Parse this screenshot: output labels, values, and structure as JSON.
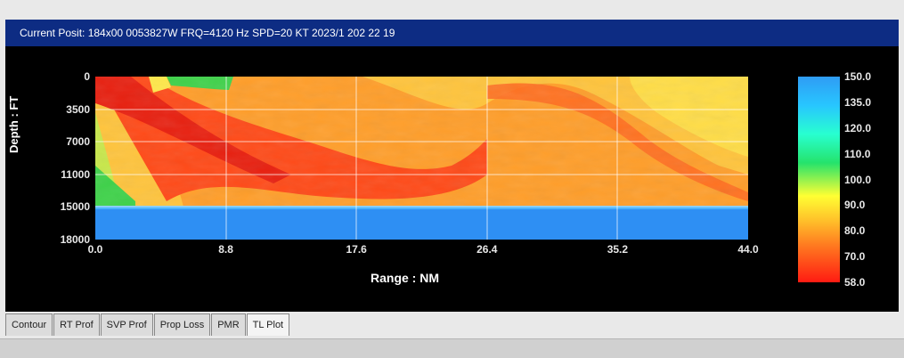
{
  "window": {
    "title": "Current Posit: 184x00 0053827W FRQ=4120 Hz SPD=20 KT  2023/1 202 22 19"
  },
  "chart_data": {
    "type": "heatmap",
    "xlabel": "Range : NM",
    "ylabel": "Depth : FT",
    "x_ticks": [
      "0.0",
      "8.8",
      "17.6",
      "26.4",
      "35.2",
      "44.0"
    ],
    "y_ticks": [
      "0",
      "3500",
      "7000",
      "11000",
      "15000",
      "18000"
    ],
    "xlim": [
      0,
      44
    ],
    "ylim": [
      0,
      18000
    ],
    "colorbar_ticks": [
      "150.0",
      "135.0",
      "120.0",
      "110.0",
      "100.0",
      "90.0",
      "80.0",
      "70.0",
      "58.0"
    ],
    "colorbar_colors": [
      "#2f9cf4",
      "#28c6ff",
      "#28ffd0",
      "#25e36b",
      "#ffff33",
      "#ffc02a",
      "#ff7a20",
      "#ff1b12"
    ]
  },
  "tabs": [
    "Contour",
    "RT Prof",
    "SVP Prof",
    "Prop Loss",
    "PMR",
    "TL Plot"
  ],
  "active_tab": "TL Plot"
}
